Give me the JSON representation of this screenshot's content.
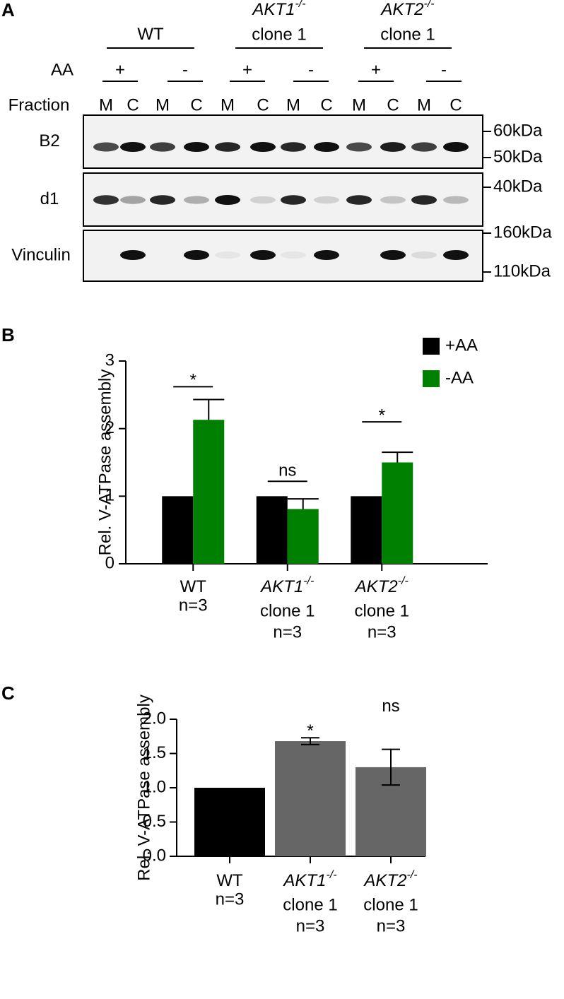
{
  "panel_a": {
    "letter": "A",
    "groups": [
      {
        "label": "WT"
      },
      {
        "label": "AKT1",
        "sup": "-/-",
        "line2": "clone 1"
      },
      {
        "label": "AKT2",
        "sup": "-/-",
        "line2": "clone 1"
      }
    ],
    "aa_label": "AA",
    "aa_signs": [
      "+",
      "-",
      "+",
      "-",
      "+",
      "-"
    ],
    "fraction_label": "Fraction",
    "lanes": [
      "M",
      "C",
      "M",
      "C",
      "M",
      "C",
      "M",
      "C",
      "M",
      "C",
      "M",
      "C"
    ],
    "rows": [
      {
        "label": "B2",
        "markers": [
          "60kDa",
          "50kDa"
        ]
      },
      {
        "label": "d1",
        "markers": [
          "40kDa"
        ]
      },
      {
        "label": "Vinculin",
        "markers": [
          "160kDa",
          "110kDa"
        ]
      }
    ]
  },
  "chart_data": [
    {
      "type": "bar",
      "panel": "B",
      "y_label": "Rel. V-ATPase assembly",
      "categories": [
        {
          "label": "WT",
          "n": "n=3"
        },
        {
          "label": "AKT1",
          "sup": "-/-",
          "line2": "clone 1",
          "n": "n=3"
        },
        {
          "label": "AKT2",
          "sup": "-/-",
          "line2": "clone 1",
          "n": "n=3"
        }
      ],
      "series": [
        {
          "name": "+AA",
          "color": "#000000",
          "values": [
            1,
            1,
            1
          ]
        },
        {
          "name": "-AA",
          "color": "#008000",
          "values": [
            2.13,
            0.81,
            1.5
          ],
          "errors": [
            0.3,
            0.15,
            0.15
          ]
        }
      ],
      "ylim": [
        0,
        3
      ],
      "yticks": [
        0,
        1,
        2,
        3
      ],
      "legend": "top-right",
      "annotations": [
        {
          "text": "*",
          "category": 0,
          "y": 2.62
        },
        {
          "text": "ns",
          "category": 1,
          "y": 1.22
        },
        {
          "text": "*",
          "category": 2,
          "y": 2.1
        }
      ]
    },
    {
      "type": "bar",
      "panel": "C",
      "y_label": "Rel. V-ATPase assembly",
      "categories": [
        {
          "label": "WT",
          "n": "n=3"
        },
        {
          "label": "AKT1",
          "sup": "-/-",
          "line2": "clone 1",
          "n": "n=3"
        },
        {
          "label": "AKT2",
          "sup": "-/-",
          "line2": "clone 1",
          "n": "n=3"
        }
      ],
      "values": [
        1,
        1.68,
        1.3
      ],
      "errors": [
        null,
        0.05,
        0.26
      ],
      "colors": [
        "#000000",
        "#666666",
        "#666666"
      ],
      "ylim": [
        0,
        2
      ],
      "yticks": [
        {
          "value": 0,
          "label": "0.0"
        },
        {
          "value": 0.5,
          "label": "0.5"
        },
        {
          "value": 1,
          "label": "1.0"
        },
        {
          "value": 1.5,
          "label": "1.5"
        },
        {
          "value": 2,
          "label": "2.0"
        }
      ],
      "annotations": [
        {
          "text": "*",
          "category": 1,
          "y": 1.82
        },
        {
          "text": "ns",
          "category": 2,
          "y": 2.18
        }
      ]
    }
  ]
}
